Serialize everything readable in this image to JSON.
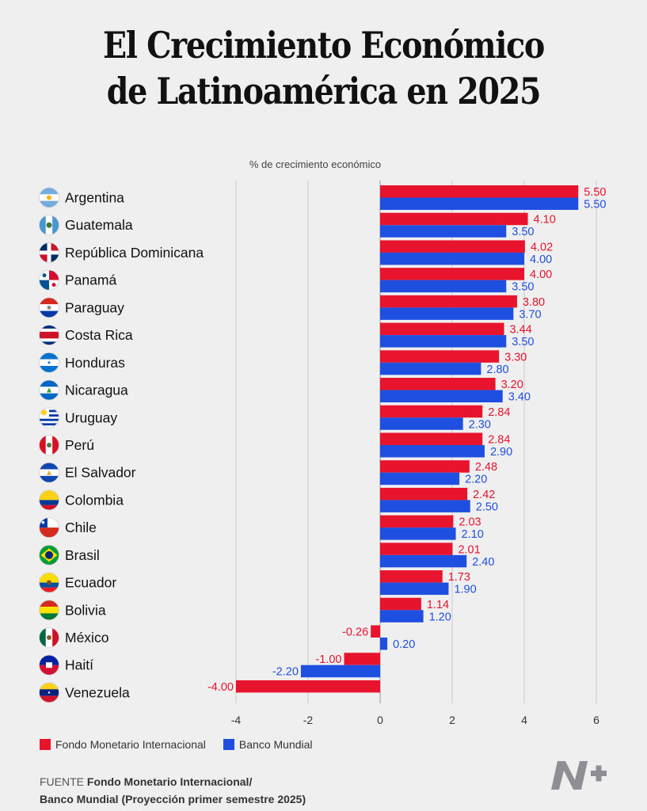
{
  "title_line1": "El Crecimiento Económico",
  "title_line2": "de Latinoamérica en 2025",
  "chart_data": {
    "type": "bar",
    "orientation": "horizontal",
    "title": "El Crecimiento Económico de Latinoamérica en 2025",
    "xlabel": "% de crecimiento económico",
    "xlim": [
      -4,
      6
    ],
    "xticks": [
      -4,
      -2,
      0,
      2,
      4,
      6
    ],
    "grid": true,
    "legend": "bottom-left",
    "categories": [
      "Argentina",
      "Guatemala",
      "República Dominicana",
      "Panamá",
      "Paraguay",
      "Costa Rica",
      "Honduras",
      "Nicaragua",
      "Uruguay",
      "Perú",
      "El Salvador",
      "Colombia",
      "Chile",
      "Brasil",
      "Ecuador",
      "Bolivia",
      "México",
      "Haití",
      "Venezuela"
    ],
    "series": [
      {
        "name": "Fondo Monetario Internacional",
        "color": "#e8132d",
        "values": [
          5.5,
          4.1,
          4.02,
          4.0,
          3.8,
          3.44,
          3.3,
          3.2,
          2.84,
          2.84,
          2.48,
          2.42,
          2.03,
          2.01,
          1.73,
          1.14,
          -0.26,
          -1.0,
          -4.0
        ],
        "labels": [
          "5.50",
          "4.10",
          "4.02",
          "4.00",
          "3.80",
          "3.44",
          "3.30",
          "3.20",
          "2.84",
          "2.84",
          "2.48",
          "2.42",
          "2.03",
          "2.01",
          "1.73",
          "1.14",
          "-0.26",
          "-1.00",
          "-4.00"
        ]
      },
      {
        "name": "Banco Mundial",
        "color": "#1f4fe0",
        "values": [
          5.5,
          3.5,
          4.0,
          3.5,
          3.7,
          3.5,
          2.8,
          3.4,
          2.3,
          2.9,
          2.2,
          2.5,
          2.1,
          2.4,
          1.9,
          1.2,
          0.2,
          -2.2,
          null
        ],
        "labels": [
          "5.50",
          "3.50",
          "4.00",
          "3.50",
          "3.70",
          "3.50",
          "2.80",
          "3.40",
          "2.30",
          "2.90",
          "2.20",
          "2.50",
          "2.10",
          "2.40",
          "1.90",
          "1.20",
          "0.20",
          "-2.20",
          ""
        ]
      }
    ],
    "flag_icons": [
      "argentina-flag-icon",
      "guatemala-flag-icon",
      "dominican-republic-flag-icon",
      "panama-flag-icon",
      "paraguay-flag-icon",
      "costa-rica-flag-icon",
      "honduras-flag-icon",
      "nicaragua-flag-icon",
      "uruguay-flag-icon",
      "peru-flag-icon",
      "el-salvador-flag-icon",
      "colombia-flag-icon",
      "chile-flag-icon",
      "brazil-flag-icon",
      "ecuador-flag-icon",
      "bolivia-flag-icon",
      "mexico-flag-icon",
      "haiti-flag-icon",
      "venezuela-flag-icon"
    ]
  },
  "legend": {
    "imf": "Fondo Monetario Internacional",
    "wb": "Banco Mundial",
    "imf_color": "#e8132d",
    "wb_color": "#1f4fe0"
  },
  "source": {
    "prefix": "FUENTE",
    "line1": "Fondo Monetario Internacional/",
    "line2": "Banco Mundial (Proyección primer semestre 2025)"
  },
  "logo": "n-plus-logo-icon"
}
